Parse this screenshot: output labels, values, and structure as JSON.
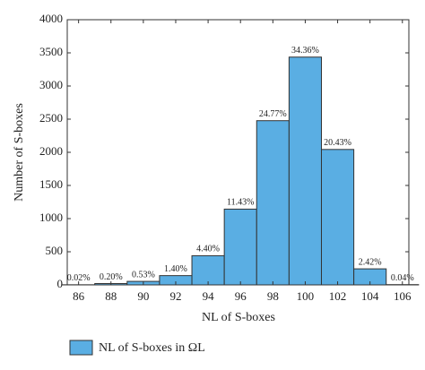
{
  "chart_data": {
    "type": "histogram",
    "bins": [
      85,
      87,
      89,
      91,
      93,
      95,
      97,
      99,
      101,
      103,
      105,
      107
    ],
    "values": [
      2,
      20,
      53,
      140,
      440,
      1143,
      2477,
      3436,
      2043,
      242,
      4
    ],
    "value_labels": [
      "0.02%",
      "0.20%",
      "0.53%",
      "1.40%",
      "4.40%",
      "11.43%",
      "24.77%",
      "34.36%",
      "20.43%",
      "2.42%",
      "0.04%"
    ],
    "name": "NL of S-boxes in ΩL",
    "color": "#5aaee3",
    "xlabel": "NL of S-boxes",
    "ylabel": "Number of S-boxes",
    "xlim": [
      85.3,
      106.4
    ],
    "ylim": [
      0,
      4000
    ],
    "xticks": [
      86,
      88,
      90,
      92,
      94,
      96,
      98,
      100,
      102,
      104,
      106
    ],
    "yticks": [
      0,
      500,
      1000,
      1500,
      2000,
      2500,
      3000,
      3500,
      4000
    ]
  }
}
